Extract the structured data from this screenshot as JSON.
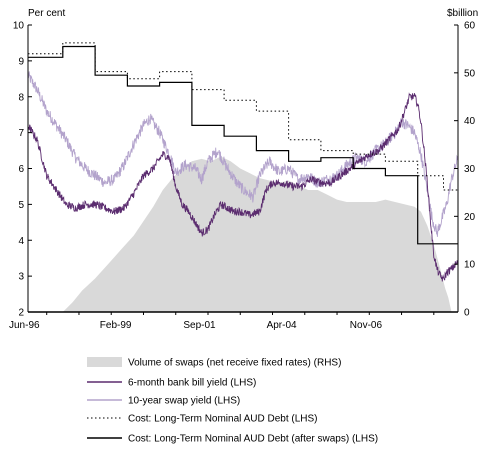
{
  "chart_data": {
    "type": "line",
    "left_axis_label": "Per cent",
    "right_axis_label": "$billion",
    "x_tick_labels": [
      "Jun-96",
      "Feb-99",
      "Sep-01",
      "Apr-04",
      "Nov-06"
    ],
    "x_range": [
      1996.42,
      2009.75
    ],
    "y_left_ticks": [
      "2",
      "3",
      "4",
      "5",
      "6",
      "7",
      "8",
      "9",
      "10"
    ],
    "y_left_range": [
      2,
      10
    ],
    "y_right_ticks": [
      "0",
      "10",
      "20",
      "30",
      "40",
      "50",
      "60"
    ],
    "y_right_range": [
      0,
      60
    ],
    "grid": false,
    "legend_position": "bottom",
    "series": [
      {
        "name": "Volume of swaps (net receive fixed rates) (RHS)",
        "axis": "right",
        "style": "area",
        "color": "#d9d9d9",
        "points": [
          [
            1997.5,
            0
          ],
          [
            1997.8,
            2
          ],
          [
            1998.1,
            4.5
          ],
          [
            1998.5,
            7
          ],
          [
            1998.9,
            10
          ],
          [
            1999.3,
            13
          ],
          [
            1999.7,
            16
          ],
          [
            2000.0,
            19
          ],
          [
            2000.3,
            22
          ],
          [
            2000.6,
            25.5
          ],
          [
            2000.9,
            28
          ],
          [
            2001.2,
            30
          ],
          [
            2001.5,
            31.5
          ],
          [
            2001.8,
            32
          ],
          [
            2002.1,
            31.5
          ],
          [
            2002.4,
            32.5
          ],
          [
            2002.7,
            31.5
          ],
          [
            2003.0,
            30
          ],
          [
            2003.3,
            29
          ],
          [
            2003.6,
            28
          ],
          [
            2003.9,
            27.5
          ],
          [
            2004.2,
            27
          ],
          [
            2004.5,
            27.5
          ],
          [
            2004.8,
            26.5
          ],
          [
            2005.1,
            25.5
          ],
          [
            2005.4,
            25.5
          ],
          [
            2005.7,
            24.5
          ],
          [
            2006.0,
            23.5
          ],
          [
            2006.3,
            23
          ],
          [
            2006.6,
            23
          ],
          [
            2006.9,
            23
          ],
          [
            2007.2,
            23
          ],
          [
            2007.5,
            23.5
          ],
          [
            2007.8,
            23
          ],
          [
            2008.1,
            22.5
          ],
          [
            2008.4,
            22
          ],
          [
            2008.6,
            21
          ],
          [
            2008.8,
            18
          ],
          [
            2009.0,
            14
          ],
          [
            2009.2,
            9
          ],
          [
            2009.35,
            5
          ],
          [
            2009.45,
            3
          ],
          [
            2009.55,
            0
          ]
        ]
      },
      {
        "name": "6-month bank bill yield (LHS)",
        "axis": "left",
        "style": "line",
        "color": "#5b2c6f",
        "points": [
          [
            1996.42,
            7.2
          ],
          [
            1996.7,
            6.8
          ],
          [
            1997.0,
            5.8
          ],
          [
            1997.3,
            5.4
          ],
          [
            1997.6,
            5.0
          ],
          [
            1997.9,
            4.9
          ],
          [
            1998.2,
            5.0
          ],
          [
            1998.5,
            5.0
          ],
          [
            1998.8,
            4.9
          ],
          [
            1999.1,
            4.8
          ],
          [
            1999.4,
            4.9
          ],
          [
            1999.7,
            5.3
          ],
          [
            2000.0,
            5.8
          ],
          [
            2000.3,
            6.0
          ],
          [
            2000.6,
            6.4
          ],
          [
            2000.8,
            6.3
          ],
          [
            2001.0,
            5.5
          ],
          [
            2001.2,
            5.0
          ],
          [
            2001.4,
            4.8
          ],
          [
            2001.6,
            4.5
          ],
          [
            2001.8,
            4.2
          ],
          [
            2002.0,
            4.3
          ],
          [
            2002.2,
            4.7
          ],
          [
            2002.4,
            5.0
          ],
          [
            2002.6,
            4.9
          ],
          [
            2002.8,
            4.8
          ],
          [
            2003.0,
            4.8
          ],
          [
            2003.3,
            4.7
          ],
          [
            2003.6,
            4.8
          ],
          [
            2003.8,
            5.4
          ],
          [
            2004.0,
            5.6
          ],
          [
            2004.3,
            5.6
          ],
          [
            2004.6,
            5.5
          ],
          [
            2004.9,
            5.5
          ],
          [
            2005.2,
            5.7
          ],
          [
            2005.5,
            5.6
          ],
          [
            2005.8,
            5.6
          ],
          [
            2006.1,
            5.8
          ],
          [
            2006.4,
            6.0
          ],
          [
            2006.7,
            6.2
          ],
          [
            2007.0,
            6.4
          ],
          [
            2007.3,
            6.5
          ],
          [
            2007.6,
            6.8
          ],
          [
            2007.9,
            7.1
          ],
          [
            2008.1,
            7.6
          ],
          [
            2008.25,
            8.0
          ],
          [
            2008.4,
            8.0
          ],
          [
            2008.5,
            7.8
          ],
          [
            2008.6,
            7.3
          ],
          [
            2008.7,
            6.5
          ],
          [
            2008.8,
            5.6
          ],
          [
            2008.9,
            4.5
          ],
          [
            2009.0,
            3.6
          ],
          [
            2009.1,
            3.2
          ],
          [
            2009.2,
            3.0
          ],
          [
            2009.3,
            2.9
          ],
          [
            2009.4,
            3.1
          ],
          [
            2009.55,
            3.2
          ],
          [
            2009.75,
            3.4
          ]
        ]
      },
      {
        "name": "10-year swap yield (LHS)",
        "axis": "left",
        "style": "line",
        "color": "#b3a3cc",
        "points": [
          [
            1996.42,
            8.6
          ],
          [
            1996.7,
            8.2
          ],
          [
            1997.0,
            7.6
          ],
          [
            1997.3,
            7.2
          ],
          [
            1997.6,
            6.8
          ],
          [
            1997.9,
            6.3
          ],
          [
            1998.2,
            6.0
          ],
          [
            1998.5,
            5.8
          ],
          [
            1998.8,
            5.6
          ],
          [
            1999.1,
            5.7
          ],
          [
            1999.4,
            6.1
          ],
          [
            1999.7,
            6.7
          ],
          [
            2000.0,
            7.2
          ],
          [
            2000.2,
            7.4
          ],
          [
            2000.5,
            7.0
          ],
          [
            2000.8,
            6.4
          ],
          [
            2001.0,
            5.9
          ],
          [
            2001.3,
            6.1
          ],
          [
            2001.6,
            6.0
          ],
          [
            2001.8,
            5.7
          ],
          [
            2002.0,
            6.2
          ],
          [
            2002.3,
            6.5
          ],
          [
            2002.6,
            6.0
          ],
          [
            2002.9,
            5.6
          ],
          [
            2003.1,
            5.4
          ],
          [
            2003.4,
            5.2
          ],
          [
            2003.6,
            5.8
          ],
          [
            2003.9,
            6.2
          ],
          [
            2004.2,
            5.9
          ],
          [
            2004.5,
            6.0
          ],
          [
            2004.8,
            5.7
          ],
          [
            2005.1,
            5.8
          ],
          [
            2005.4,
            5.6
          ],
          [
            2005.7,
            5.7
          ],
          [
            2006.0,
            5.8
          ],
          [
            2006.3,
            6.1
          ],
          [
            2006.6,
            6.3
          ],
          [
            2006.9,
            6.2
          ],
          [
            2007.2,
            6.5
          ],
          [
            2007.5,
            6.7
          ],
          [
            2007.8,
            7.0
          ],
          [
            2008.0,
            7.3
          ],
          [
            2008.2,
            7.2
          ],
          [
            2008.4,
            7.0
          ],
          [
            2008.6,
            6.4
          ],
          [
            2008.8,
            5.4
          ],
          [
            2008.95,
            4.6
          ],
          [
            2009.1,
            4.2
          ],
          [
            2009.25,
            4.6
          ],
          [
            2009.4,
            5.0
          ],
          [
            2009.55,
            5.7
          ],
          [
            2009.75,
            6.3
          ]
        ]
      },
      {
        "name": "Cost: Long-Term Nominal AUD Debt (LHS)",
        "axis": "left",
        "style": "dotted-step",
        "color": "#000000",
        "points": [
          [
            1996.42,
            9.2
          ],
          [
            1997.5,
            9.5
          ],
          [
            1998.5,
            8.7
          ],
          [
            1999.5,
            8.5
          ],
          [
            2000.5,
            8.7
          ],
          [
            2001.5,
            8.2
          ],
          [
            2002.5,
            7.9
          ],
          [
            2003.5,
            7.6
          ],
          [
            2004.5,
            6.8
          ],
          [
            2005.5,
            6.5
          ],
          [
            2006.5,
            6.4
          ],
          [
            2007.5,
            6.2
          ],
          [
            2008.5,
            5.8
          ],
          [
            2009.3,
            5.4
          ],
          [
            2009.75,
            5.4
          ]
        ]
      },
      {
        "name": "Cost: Long-Term Nominal AUD Debt (after swaps) (LHS)",
        "axis": "left",
        "style": "solid-step",
        "color": "#000000",
        "points": [
          [
            1996.42,
            9.1
          ],
          [
            1997.5,
            9.4
          ],
          [
            1998.5,
            8.6
          ],
          [
            1999.5,
            8.3
          ],
          [
            2000.5,
            8.4
          ],
          [
            2001.5,
            7.2
          ],
          [
            2002.5,
            6.9
          ],
          [
            2003.5,
            6.5
          ],
          [
            2004.5,
            6.2
          ],
          [
            2005.5,
            6.3
          ],
          [
            2006.5,
            6.0
          ],
          [
            2007.5,
            5.8
          ],
          [
            2008.5,
            3.9
          ],
          [
            2009.3,
            3.9
          ],
          [
            2009.75,
            3.9
          ]
        ]
      }
    ]
  }
}
